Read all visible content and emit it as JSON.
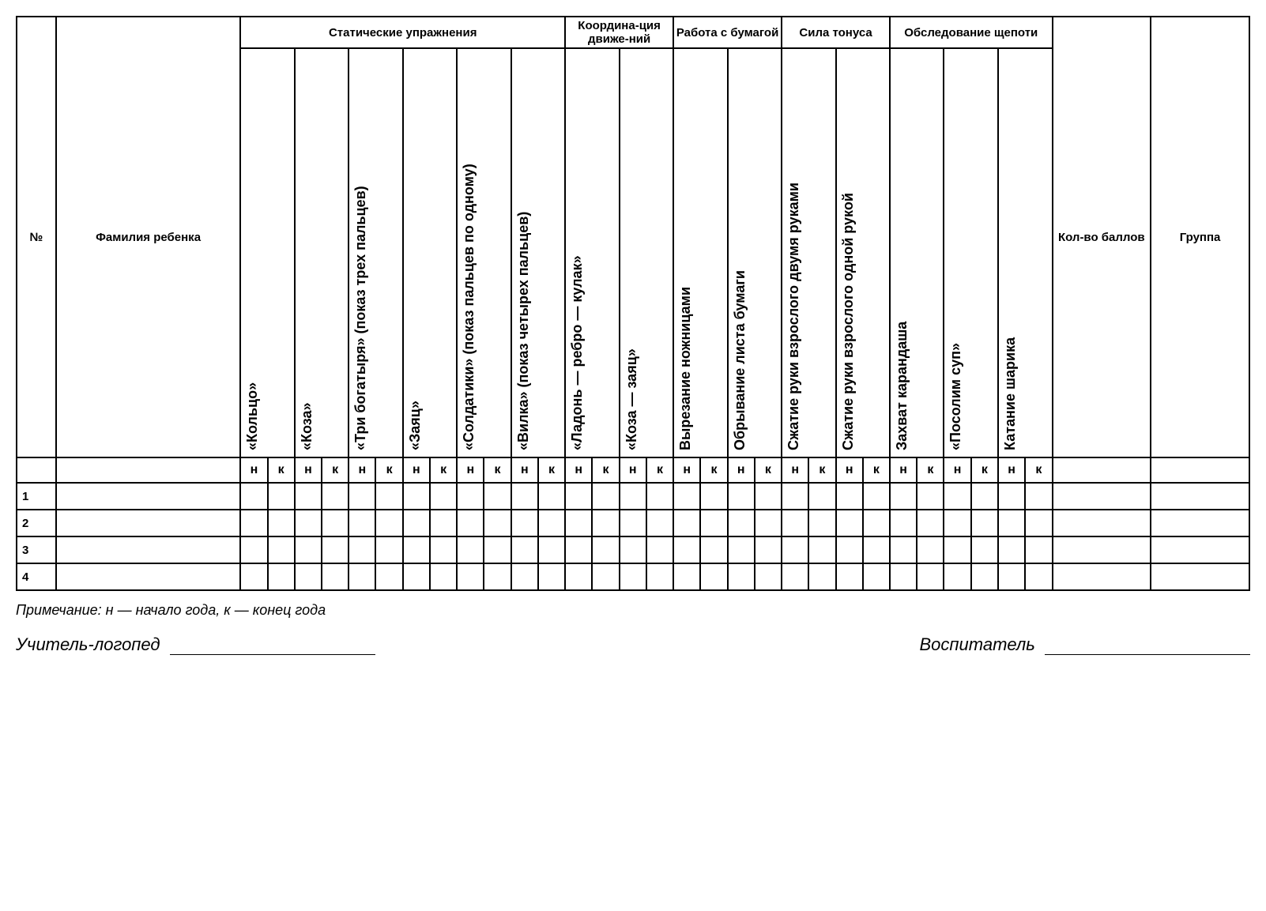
{
  "headers": {
    "num": "№",
    "name": "Фамилия ребенка",
    "group1": "Статические упражнения",
    "group2": "Координа-ция движе-ний",
    "group3": "Работа с бумагой",
    "group4": "Сила тонуса",
    "group5": "Обследование щепоти",
    "score": "Кол-во баллов",
    "group": "Группа"
  },
  "subcols": [
    "«Кольцо»",
    "«Коза»",
    "«Три богатыря» (показ трех пальцев)",
    "«Заяц»",
    "«Солдатики» (показ пальцев по одному)",
    "«Вилка» (показ четырех пальцев)",
    "«Ладонь — ребро — кулак»",
    "«Коза — заяц»",
    "Вырезание ножницами",
    "Обрывание листа бумаги",
    "Сжатие руки взрослого двумя руками",
    "Сжатие руки взрослого одной рукой",
    "Захват карандаша",
    "«Посолим суп»",
    "Катание шарика"
  ],
  "nk": {
    "n": "н",
    "k": "к"
  },
  "rows": [
    "1",
    "2",
    "3",
    "4"
  ],
  "note": "Примечание: н — начало года, к — конец года",
  "sign1": "Учитель-логопед",
  "sign2": "Воспитатель"
}
